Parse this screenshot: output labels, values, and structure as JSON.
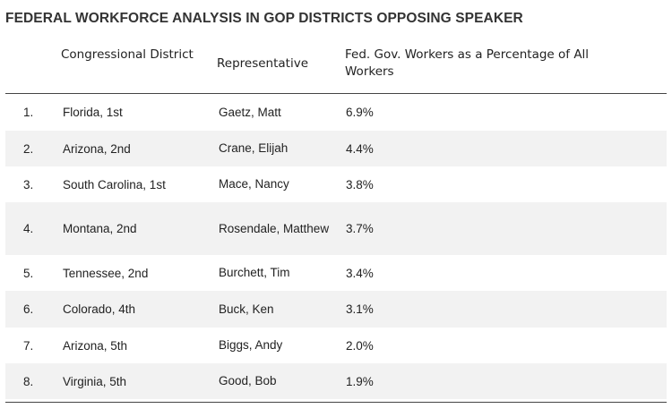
{
  "chart_data": {
    "type": "table",
    "title": "FEDERAL WORKFORCE ANALYSIS IN GOP DISTRICTS OPPOSING SPEAKER",
    "columns": [
      "",
      "Congressional District",
      "Representative",
      "Fed. Gov. Workers as a Percentage of All Workers"
    ],
    "rows": [
      {
        "rank": "1.",
        "district": "Florida, 1st",
        "representative": "Gaetz, Matt",
        "pct": "6.9%",
        "value": 6.9
      },
      {
        "rank": "2.",
        "district": "Arizona, 2nd",
        "representative": "Crane, Elijah",
        "pct": "4.4%",
        "value": 4.4
      },
      {
        "rank": "3.",
        "district": "South Carolina, 1st",
        "representative": "Mace, Nancy",
        "pct": "3.8%",
        "value": 3.8
      },
      {
        "rank": "4.",
        "district": "Montana, 2nd",
        "representative": "Rosendale, Matthew",
        "pct": "3.7%",
        "value": 3.7
      },
      {
        "rank": "5.",
        "district": "Tennessee, 2nd",
        "representative": "Burchett, Tim",
        "pct": "3.4%",
        "value": 3.4
      },
      {
        "rank": "6.",
        "district": "Colorado, 4th",
        "representative": "Buck, Ken",
        "pct": "3.1%",
        "value": 3.1
      },
      {
        "rank": "7.",
        "district": "Arizona, 5th",
        "representative": "Biggs, Andy",
        "pct": "2.0%",
        "value": 2.0
      },
      {
        "rank": "8.",
        "district": "Virginia, 5th",
        "representative": "Good, Bob",
        "pct": "1.9%",
        "value": 1.9
      }
    ]
  },
  "colors": {
    "row_alt": "#f2f2f2",
    "rule": "#444444",
    "text": "#222222"
  }
}
